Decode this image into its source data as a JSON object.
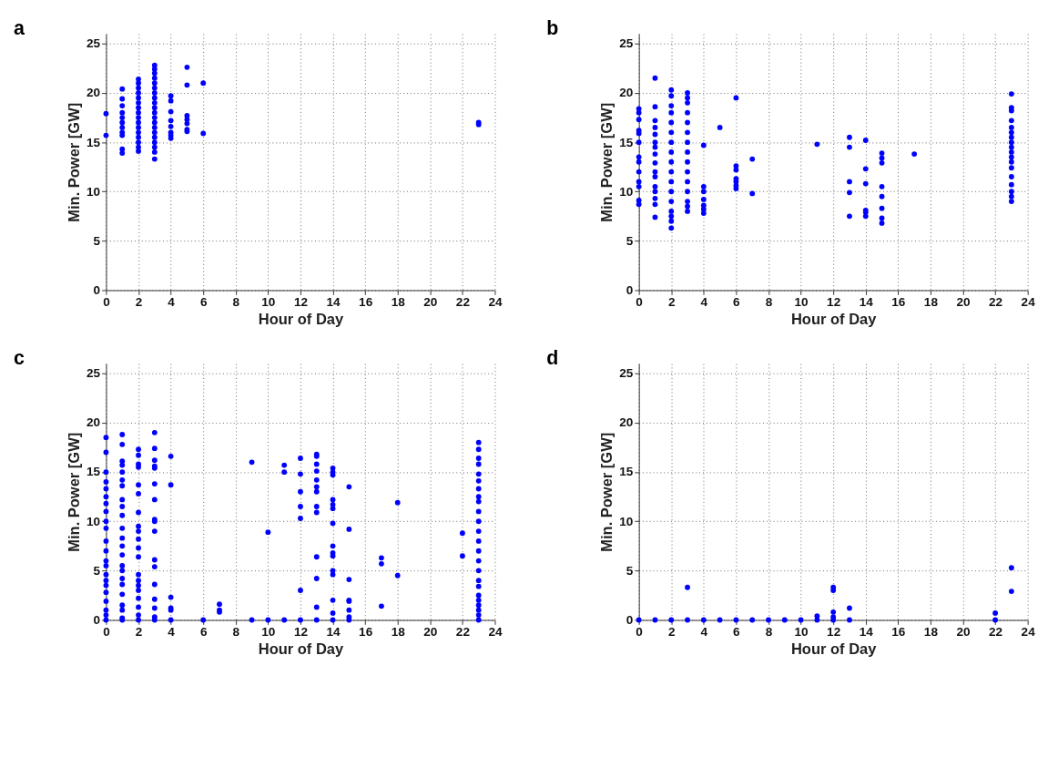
{
  "chart_data": [
    {
      "type": "scatter",
      "title": "a",
      "xlabel": "Hour of Day",
      "ylabel": "Min. Power [GW]",
      "xlim": [
        0,
        24
      ],
      "ylim": [
        0,
        26
      ],
      "xticks": [
        0,
        2,
        4,
        6,
        8,
        10,
        12,
        14,
        16,
        18,
        20,
        22,
        24
      ],
      "yticks": [
        0,
        5,
        10,
        15,
        20,
        25
      ],
      "grid": true,
      "marker": "circle",
      "series": [
        {
          "color": "#0000ff",
          "x": [
            0,
            0,
            1,
            1,
            1,
            1,
            1,
            1,
            1,
            1,
            1,
            1,
            1,
            2,
            2,
            2,
            2,
            2,
            2,
            2,
            2,
            2,
            2,
            2,
            2,
            2,
            2,
            2,
            2,
            3,
            3,
            3,
            3,
            3,
            3,
            3,
            3,
            3,
            3,
            3,
            3,
            3,
            3,
            3,
            3,
            3,
            3,
            3,
            3,
            4,
            4,
            4,
            4,
            4,
            4,
            4,
            4,
            5,
            5,
            5,
            5,
            5,
            5,
            5,
            6,
            6,
            23,
            23
          ],
          "values": [
            15.7,
            17.9,
            13.9,
            14.3,
            15.7,
            16.0,
            16.5,
            17.0,
            17.5,
            18.0,
            18.7,
            19.4,
            20.4,
            14.1,
            14.5,
            15,
            15.5,
            16,
            16.5,
            17,
            17.5,
            18,
            18.5,
            19,
            19.5,
            20,
            20.5,
            21,
            21.4,
            13.3,
            14,
            14.5,
            15,
            15.5,
            16,
            16.5,
            17,
            17.5,
            18,
            18.5,
            19,
            19.5,
            20,
            20.5,
            21,
            21.5,
            22,
            22.4,
            22.8,
            15.4,
            15.7,
            16.0,
            16.6,
            17.2,
            18.1,
            19.2,
            19.7,
            16.1,
            16.3,
            16.9,
            17.3,
            17.7,
            20.8,
            22.6,
            15.9,
            21.0,
            16.8,
            17.0
          ]
        }
      ]
    },
    {
      "type": "scatter",
      "title": "b",
      "xlabel": "Hour of Day",
      "ylabel": "Min. Power [GW]",
      "xlim": [
        0,
        24
      ],
      "ylim": [
        0,
        26
      ],
      "xticks": [
        0,
        2,
        4,
        6,
        8,
        10,
        12,
        14,
        16,
        18,
        20,
        22,
        24
      ],
      "yticks": [
        0,
        5,
        10,
        15,
        20,
        25
      ],
      "grid": true,
      "marker": "circle",
      "series": [
        {
          "color": "#0000ff",
          "x": [
            0,
            0,
            0,
            0,
            0,
            0,
            0,
            0,
            0,
            0,
            0,
            0,
            0,
            1,
            1,
            1,
            1,
            1,
            1,
            1,
            1,
            1,
            1,
            1,
            1,
            1,
            1,
            1,
            1,
            2,
            2,
            2,
            2,
            2,
            2,
            2,
            2,
            2,
            2,
            2,
            2,
            2,
            2,
            2,
            2,
            2,
            3,
            3,
            3,
            3,
            3,
            3,
            3,
            3,
            3,
            3,
            3,
            3,
            3,
            3,
            3,
            4,
            4,
            4,
            4,
            4,
            4,
            4,
            5,
            6,
            6,
            6,
            6,
            6,
            6,
            6,
            7,
            7,
            11,
            13,
            13,
            13,
            13,
            13,
            14,
            14,
            14,
            14,
            14,
            14,
            15,
            15,
            15,
            15,
            15,
            15,
            15,
            15,
            17,
            23,
            23,
            23,
            23,
            23,
            23,
            23,
            23,
            23,
            23,
            23,
            23,
            23,
            23,
            23,
            23,
            23,
            23
          ],
          "values": [
            8.7,
            9.1,
            10.5,
            11,
            12,
            13,
            13.5,
            15,
            15.9,
            16.2,
            17.3,
            18,
            18.4,
            7.4,
            8.7,
            9.3,
            10,
            10.5,
            11.5,
            12,
            12.9,
            13.8,
            14.5,
            15,
            15.8,
            16.5,
            17.2,
            18.6,
            21.5,
            6.3,
            7,
            7.5,
            8,
            9,
            10,
            11,
            12,
            13,
            14,
            15,
            16,
            17,
            18,
            18.7,
            19.7,
            20.3,
            8,
            8.5,
            9,
            10,
            11,
            12,
            13,
            14,
            15,
            16,
            17,
            18,
            19,
            19.5,
            20,
            7.8,
            8.2,
            8.6,
            9.2,
            10,
            10.5,
            14.7,
            16.5,
            10.3,
            10.6,
            11,
            11.3,
            12.2,
            12.6,
            19.5,
            9.8,
            13.3,
            14.8,
            7.5,
            9.9,
            11,
            14.5,
            15.5,
            7.5,
            7.9,
            8.1,
            10.8,
            12.3,
            15.2,
            6.8,
            7.3,
            8.3,
            9.5,
            10.5,
            12.9,
            13.4,
            13.9,
            13.8,
            9,
            9.5,
            10,
            10.7,
            11.5,
            12.4,
            13,
            13.5,
            14,
            14.5,
            15,
            15.5,
            16,
            16.5,
            17.2,
            18.2,
            18.5,
            19.9
          ]
        }
      ]
    },
    {
      "type": "scatter",
      "title": "c",
      "xlabel": "Hour of Day",
      "ylabel": "Min. Power [GW]",
      "xlim": [
        0,
        24
      ],
      "ylim": [
        0,
        26
      ],
      "xticks": [
        0,
        2,
        4,
        6,
        8,
        10,
        12,
        14,
        16,
        18,
        20,
        22,
        24
      ],
      "yticks": [
        0,
        5,
        10,
        15,
        20,
        25
      ],
      "grid": true,
      "marker": "circle",
      "series": [
        {
          "color": "#0000ff",
          "x": [
            0,
            0,
            0,
            0,
            0,
            0,
            0,
            0,
            0,
            0,
            0,
            0,
            0,
            0,
            0,
            0,
            0,
            0,
            0,
            0,
            0,
            0,
            1,
            1,
            1,
            1,
            1,
            1,
            1,
            1,
            1,
            1,
            1,
            1,
            1,
            1,
            1,
            1,
            1,
            1,
            1,
            1,
            1,
            1,
            1,
            2,
            2,
            2,
            2,
            2,
            2,
            2,
            2,
            2,
            2,
            2,
            2,
            2,
            2,
            2,
            2,
            2,
            2,
            2,
            2,
            3,
            3,
            3,
            3,
            3,
            3,
            3,
            3,
            3,
            3,
            3,
            3,
            3,
            3,
            3,
            3,
            3,
            4,
            4,
            4,
            4,
            4,
            4,
            6,
            7,
            7,
            7,
            9,
            9,
            10,
            10,
            11,
            11,
            11,
            12,
            12,
            12,
            12,
            12,
            12,
            12,
            13,
            13,
            13,
            13,
            13,
            13,
            13,
            13,
            13,
            13,
            13,
            13,
            13,
            14,
            14,
            14,
            14,
            14,
            14,
            14,
            14,
            14,
            14,
            14,
            14,
            14,
            14,
            14,
            15,
            15,
            15,
            15,
            15,
            15,
            15,
            15,
            17,
            17,
            17,
            18,
            18,
            22,
            22,
            23,
            23,
            23,
            23,
            23,
            23,
            23,
            23,
            23,
            23,
            23,
            23,
            23,
            23,
            23,
            23,
            23,
            23,
            23,
            23,
            23,
            23,
            23,
            23
          ],
          "values": [
            0,
            0.5,
            1,
            1.9,
            2.8,
            3.5,
            4,
            4.6,
            5.5,
            6,
            7,
            8,
            9.3,
            10,
            11,
            11.8,
            12.5,
            13.3,
            14,
            15,
            17,
            18.5,
            0,
            0.2,
            1,
            1.5,
            2.6,
            3.6,
            4.2,
            5,
            5.5,
            6.6,
            7.5,
            8.3,
            9.3,
            10.6,
            11.5,
            12.2,
            13.6,
            14.2,
            15,
            15.7,
            16.1,
            17.8,
            18.8,
            0,
            0.5,
            1.3,
            2.2,
            3,
            3.5,
            4,
            4.6,
            6.4,
            7.3,
            8.2,
            9,
            9.5,
            10.9,
            12.8,
            13.7,
            15.5,
            15.8,
            16.7,
            17.3,
            0,
            0.3,
            1.2,
            2.1,
            3.6,
            5.4,
            6.1,
            9,
            10,
            10.2,
            12.2,
            13.8,
            15.4,
            15.6,
            16.2,
            17.4,
            19,
            0,
            1,
            1.2,
            2.3,
            13.7,
            16.6,
            0,
            0.8,
            1,
            1.6,
            0,
            16,
            0,
            8.9,
            0,
            15,
            15.7,
            0,
            3,
            10.3,
            11.5,
            13,
            14.8,
            16.4,
            0,
            1.3,
            4.2,
            6.4,
            10.9,
            11.5,
            13,
            13.5,
            14.2,
            15.1,
            15.8,
            16.6,
            16.8,
            0,
            0.7,
            2,
            4.6,
            5,
            6.5,
            6.8,
            7.5,
            9.8,
            11.3,
            11.7,
            12.2,
            14.7,
            15,
            15.4,
            0,
            0.3,
            1,
            1.9,
            2,
            4.1,
            9.2,
            13.5,
            1.4,
            5.7,
            6.3,
            4.5,
            11.9,
            6.5,
            8.8,
            0,
            0.5,
            1,
            1.5,
            2,
            2.5,
            3.4,
            4,
            5,
            6,
            7,
            8,
            9,
            10,
            11,
            12,
            12.5,
            13.3,
            14.1,
            14.8,
            15.8,
            16.4,
            17.3,
            18
          ]
        }
      ]
    },
    {
      "type": "scatter",
      "title": "d",
      "xlabel": "Hour of Day",
      "ylabel": "Min. Power [GW]",
      "xlim": [
        0,
        24
      ],
      "ylim": [
        0,
        26
      ],
      "xticks": [
        0,
        2,
        4,
        6,
        8,
        10,
        12,
        14,
        16,
        18,
        20,
        22,
        24
      ],
      "yticks": [
        0,
        5,
        10,
        15,
        20,
        25
      ],
      "grid": true,
      "marker": "circle",
      "series": [
        {
          "color": "#0000ff",
          "x": [
            0,
            1,
            2,
            3,
            3,
            4,
            5,
            6,
            7,
            8,
            9,
            10,
            11,
            11,
            12,
            12,
            12,
            12,
            12,
            13,
            13,
            22,
            22,
            23,
            23
          ],
          "values": [
            0,
            0,
            0,
            0,
            3.3,
            0,
            0,
            0,
            0,
            0,
            0,
            0,
            0,
            0.4,
            0,
            0.3,
            0.8,
            3,
            3.3,
            0,
            1.2,
            0,
            0.7,
            2.9,
            5.3
          ]
        }
      ]
    }
  ]
}
